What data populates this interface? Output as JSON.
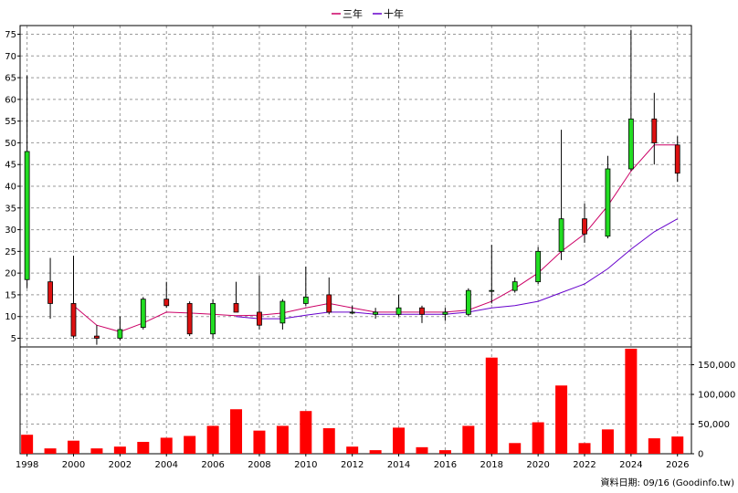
{
  "chart_data": {
    "type": "candlestick+bar",
    "legend": {
      "placement": "top-center",
      "items": [
        {
          "label": "三年",
          "color": "#cc0066"
        },
        {
          "label": "十年",
          "color": "#6600cc"
        }
      ]
    },
    "price_axis": {
      "range": [
        3,
        77
      ],
      "ticks": [
        "5",
        "10",
        "15",
        "20",
        "25",
        "30",
        "35",
        "40",
        "45",
        "50",
        "55",
        "60",
        "65",
        "70",
        "75"
      ],
      "grid": true
    },
    "volume_axis": {
      "range": [
        0,
        180000
      ],
      "ticks": [
        "0",
        "50,000",
        "100,000",
        "150,000"
      ]
    },
    "x_axis": {
      "range": [
        1997.7,
        2026.6
      ],
      "ticks": [
        "1998",
        "2000",
        "2002",
        "2004",
        "2006",
        "2008",
        "2010",
        "2012",
        "2014",
        "2016",
        "2018",
        "2020",
        "2022",
        "2024",
        "2026"
      ]
    },
    "candles": [
      {
        "year": 1998,
        "open": 18.5,
        "high": 65.5,
        "low": 16.5,
        "close": 48
      },
      {
        "year": 1999,
        "open": 18,
        "high": 23.5,
        "low": 9.5,
        "close": 13
      },
      {
        "year": 2000,
        "open": 13,
        "high": 24,
        "low": 5,
        "close": 5.5
      },
      {
        "year": 2001,
        "open": 5.5,
        "high": 8,
        "low": 3.5,
        "close": 5
      },
      {
        "year": 2002,
        "open": 5,
        "high": 10,
        "low": 4.5,
        "close": 7
      },
      {
        "year": 2003,
        "open": 7.5,
        "high": 14.5,
        "low": 7,
        "close": 14
      },
      {
        "year": 2004,
        "open": 14,
        "high": 18,
        "low": 12,
        "close": 12.5
      },
      {
        "year": 2005,
        "open": 13,
        "high": 13.5,
        "low": 5.5,
        "close": 6
      },
      {
        "year": 2006,
        "open": 6,
        "high": 14,
        "low": 5,
        "close": 13
      },
      {
        "year": 2007,
        "open": 13,
        "high": 18,
        "low": 11,
        "close": 11
      },
      {
        "year": 2008,
        "open": 11,
        "high": 19.5,
        "low": 7,
        "close": 8
      },
      {
        "year": 2009,
        "open": 8.5,
        "high": 14,
        "low": 7,
        "close": 13.5
      },
      {
        "year": 2010,
        "open": 13,
        "high": 21.5,
        "low": 12.5,
        "close": 14.5
      },
      {
        "year": 2011,
        "open": 15,
        "high": 19,
        "low": 10.5,
        "close": 11
      },
      {
        "year": 2012,
        "open": 11,
        "high": 12.5,
        "low": 10.5,
        "close": 11
      },
      {
        "year": 2013,
        "open": 10.5,
        "high": 12,
        "low": 9.5,
        "close": 11
      },
      {
        "year": 2014,
        "open": 10.5,
        "high": 15,
        "low": 10,
        "close": 12
      },
      {
        "year": 2015,
        "open": 12,
        "high": 12.5,
        "low": 8.5,
        "close": 10.5
      },
      {
        "year": 2016,
        "open": 10.5,
        "high": 12,
        "low": 9,
        "close": 11
      },
      {
        "year": 2017,
        "open": 10.5,
        "high": 16.5,
        "low": 10,
        "close": 16
      },
      {
        "year": 2018,
        "open": 16,
        "high": 26.5,
        "low": 13,
        "close": 16
      },
      {
        "year": 2019,
        "open": 16,
        "high": 19,
        "low": 15.5,
        "close": 18
      },
      {
        "year": 2020,
        "open": 18,
        "high": 26,
        "low": 17.5,
        "close": 25
      },
      {
        "year": 2021,
        "open": 25,
        "high": 53,
        "low": 23,
        "close": 32.5
      },
      {
        "year": 2022,
        "open": 32.5,
        "high": 36,
        "low": 27,
        "close": 29
      },
      {
        "year": 2023,
        "open": 28.5,
        "high": 47,
        "low": 28,
        "close": 44
      },
      {
        "year": 2024,
        "open": 44,
        "high": 76,
        "low": 43.5,
        "close": 55.5
      },
      {
        "year": 2025,
        "open": 55.5,
        "high": 61.5,
        "low": 45,
        "close": 50
      },
      {
        "year": 2026,
        "open": 49.5,
        "high": 51.5,
        "low": 41,
        "close": 43
      }
    ],
    "series": [
      {
        "name": "三年",
        "color": "#cc0066",
        "x": [
          2000,
          2001,
          2002,
          2003,
          2004,
          2005,
          2006,
          2007,
          2008,
          2009,
          2010,
          2011,
          2012,
          2013,
          2014,
          2015,
          2016,
          2017,
          2018,
          2019,
          2020,
          2021,
          2022,
          2023,
          2024,
          2025,
          2026
        ],
        "values": [
          12.5,
          8,
          6.5,
          8.5,
          11,
          10.8,
          10.5,
          10.2,
          10.3,
          10.8,
          12,
          13,
          12,
          11,
          11,
          11,
          11,
          11.5,
          13.5,
          16.5,
          20,
          25,
          29,
          35.5,
          43.5,
          49.5,
          49.5
        ]
      },
      {
        "name": "十年",
        "color": "#6600cc",
        "x": [
          2007,
          2008,
          2009,
          2010,
          2011,
          2012,
          2013,
          2014,
          2015,
          2016,
          2017,
          2018,
          2019,
          2020,
          2021,
          2022,
          2023,
          2024,
          2025,
          2026
        ],
        "values": [
          10,
          9.5,
          9.5,
          10.3,
          11,
          11,
          10.5,
          10.5,
          10.5,
          10.5,
          11,
          12,
          12.5,
          13.5,
          15.5,
          17.5,
          21,
          25.5,
          29.5,
          32.5
        ]
      }
    ],
    "volume": {
      "color": "#ff0000",
      "x": [
        1998,
        1999,
        2000,
        2001,
        2002,
        2003,
        2004,
        2005,
        2006,
        2007,
        2008,
        2009,
        2010,
        2011,
        2012,
        2013,
        2014,
        2015,
        2016,
        2017,
        2018,
        2019,
        2020,
        2021,
        2022,
        2023,
        2024,
        2025,
        2026
      ],
      "values": [
        32000,
        9000,
        22000,
        9000,
        12000,
        20000,
        27000,
        30000,
        47000,
        75000,
        39000,
        47000,
        72000,
        43000,
        12000,
        6000,
        44000,
        11000,
        6000,
        47000,
        162000,
        18000,
        53000,
        115000,
        18000,
        41000,
        177000,
        26000,
        29000
      ]
    },
    "footer": "資料日期: 09/16 (Goodinfo.tw)"
  }
}
